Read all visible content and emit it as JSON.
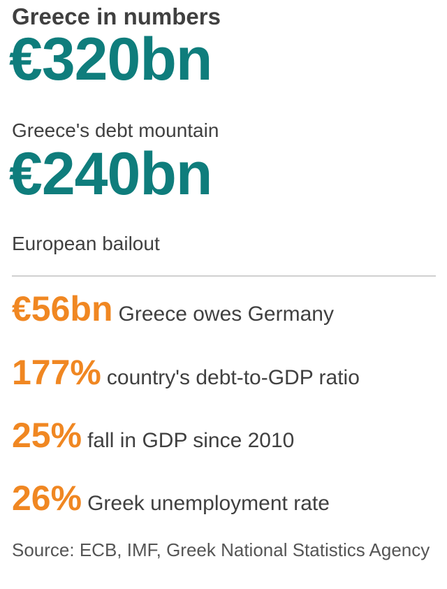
{
  "title": "Greece in numbers",
  "colors": {
    "headline_teal": "#0f7d7c",
    "stat_orange": "#f08722",
    "text": "#404040",
    "divider": "#d0d0d0"
  },
  "headlines": [
    {
      "value": "€320bn",
      "label": "Greece's debt mountain"
    },
    {
      "value": "€240bn",
      "label": "European bailout"
    }
  ],
  "stats": [
    {
      "value": "€56bn",
      "label": "Greece owes Germany"
    },
    {
      "value": "177%",
      "label": "country's debt-to-GDP ratio"
    },
    {
      "value": "25%",
      "label": "fall in GDP since 2010"
    },
    {
      "value": "26%",
      "label": "Greek unemployment rate"
    }
  ],
  "source": "Source: ECB, IMF, Greek National Statistics Agency"
}
